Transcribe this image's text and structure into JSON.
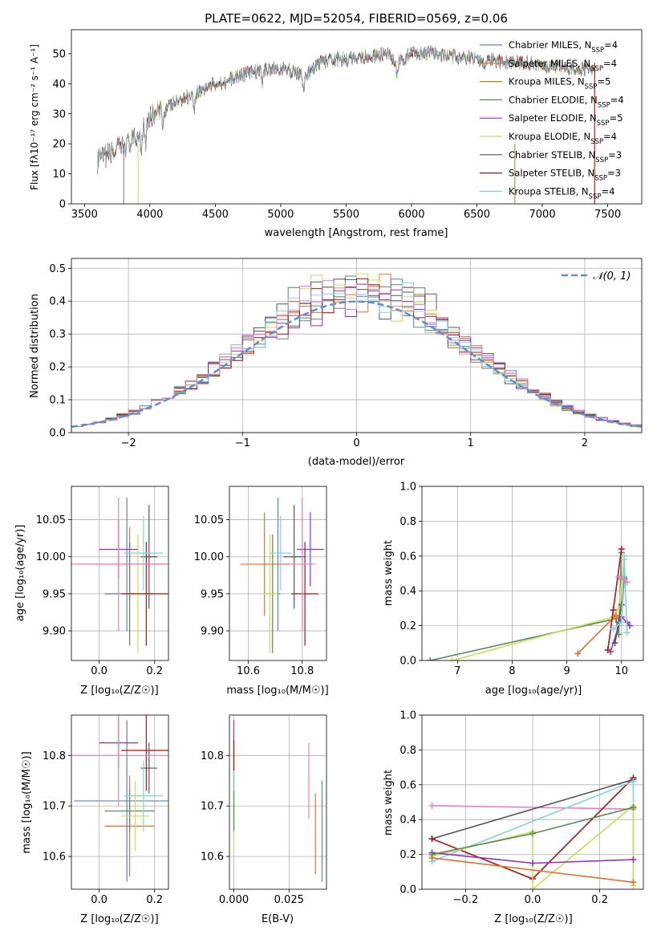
{
  "colors": [
    "#5b7fd6",
    "#e8702a",
    "#b8860b",
    "#5a8a5a",
    "#9b30c0",
    "#c8e050",
    "#555555",
    "#b01515",
    "#7fd4e0",
    "#e87fc0",
    "#3a6e3a",
    "#c0e848"
  ],
  "chart_data": [
    {
      "id": "spectrum",
      "type": "line",
      "title": "PLATE=0622, MJD=52054, FIBERID=0569, z=0.06",
      "xlabel": "wavelength [Angstrom, rest frame]",
      "ylabel": "Flux [fλ10⁻¹⁷ erg cm⁻² s⁻¹ A⁻¹]",
      "xlim": [
        3400,
        7760
      ],
      "ylim": [
        0,
        58
      ],
      "xticks": [
        3500,
        4000,
        4500,
        5000,
        5500,
        6000,
        6500,
        7000,
        7500
      ],
      "yticks": [
        0,
        10,
        20,
        30,
        40,
        50
      ],
      "legend_position": "upper-right",
      "anchors": [
        [
          3600,
          14
        ],
        [
          3700,
          17
        ],
        [
          3800,
          19
        ],
        [
          3900,
          22
        ],
        [
          3950,
          27
        ],
        [
          4000,
          29
        ],
        [
          4100,
          31
        ],
        [
          4200,
          34
        ],
        [
          4300,
          36
        ],
        [
          4400,
          38
        ],
        [
          4500,
          40
        ],
        [
          4600,
          41
        ],
        [
          4700,
          43
        ],
        [
          4800,
          44
        ],
        [
          4900,
          45
        ],
        [
          5000,
          45
        ],
        [
          5100,
          44
        ],
        [
          5200,
          43
        ],
        [
          5300,
          47
        ],
        [
          5400,
          48
        ],
        [
          5500,
          48
        ],
        [
          5600,
          49
        ],
        [
          5700,
          49
        ],
        [
          5800,
          50
        ],
        [
          5890,
          47
        ],
        [
          6000,
          50
        ],
        [
          6100,
          50
        ],
        [
          6200,
          50
        ],
        [
          6300,
          49
        ],
        [
          6400,
          49
        ],
        [
          6500,
          48
        ],
        [
          6600,
          48
        ],
        [
          6700,
          47
        ],
        [
          6800,
          47
        ],
        [
          6900,
          47
        ],
        [
          7000,
          46
        ],
        [
          7100,
          46
        ],
        [
          7200,
          45
        ],
        [
          7300,
          45
        ],
        [
          7400,
          45
        ]
      ],
      "series": [
        {
          "name": "Chabrier MILES, N",
          "sub": "SSP",
          "tail": "=4",
          "color": "#5b7fd6"
        },
        {
          "name": "Salpeter MILES, N",
          "sub": "SSP",
          "tail": "=4",
          "color": "#e8702a"
        },
        {
          "name": "Kroupa MILES, N",
          "sub": "SSP",
          "tail": "=5",
          "color": "#b8860b"
        },
        {
          "name": "Chabrier ELODIE, N",
          "sub": "SSP",
          "tail": "=4",
          "color": "#5a8a5a"
        },
        {
          "name": "Salpeter ELODIE, N",
          "sub": "SSP",
          "tail": "=5",
          "color": "#9b30c0"
        },
        {
          "name": "Kroupa ELODIE, N",
          "sub": "SSP",
          "tail": "=4",
          "color": "#c8e050"
        },
        {
          "name": "Chabrier STELIB, N",
          "sub": "SSP",
          "tail": "=3",
          "color": "#555555"
        },
        {
          "name": "Salpeter STELIB, N",
          "sub": "SSP",
          "tail": "=3",
          "color": "#b01515"
        },
        {
          "name": "Kroupa STELIB, N",
          "sub": "SSP",
          "tail": "=4",
          "color": "#7fd4e0"
        }
      ]
    },
    {
      "id": "residuals",
      "type": "histogram",
      "xlabel": "(data-model)/error",
      "ylabel": "Normed distribution",
      "xlim": [
        -2.5,
        2.5
      ],
      "ylim": [
        0,
        0.53
      ],
      "xticks": [
        -2,
        -1,
        0,
        1,
        2
      ],
      "yticks": [
        0.0,
        0.1,
        0.2,
        0.3,
        0.4,
        0.5
      ],
      "grid": true,
      "bin_width": 0.1,
      "legend": "𝒩(0, 1)",
      "legend_position": "upper-right",
      "normal_curve_color": "#5b8fd6"
    },
    {
      "id": "age-vs-Z",
      "type": "errorbar",
      "xlabel": "Z [log₁₀(Z/Z☉)]",
      "ylabel": "age  [log₁₀(age/yr)]",
      "xlim": [
        -0.1,
        0.25
      ],
      "ylim": [
        9.86,
        10.095
      ],
      "xticks": [
        0.0,
        0.2
      ],
      "yticks": [
        9.9,
        9.95,
        10.0,
        10.05
      ],
      "grid": true,
      "points": [
        {
          "x": 0.1,
          "y": 9.99,
          "xerr": 0.19,
          "yerr": 0.09,
          "color": "#5b7fd6"
        },
        {
          "x": 0.11,
          "y": 9.99,
          "xerr": 0.14,
          "yerr": 0.05,
          "color": "#e8702a"
        },
        {
          "x": 0.11,
          "y": 9.95,
          "xerr": 0.09,
          "yerr": 0.07,
          "color": "#5a8a5a"
        },
        {
          "x": 0.07,
          "y": 10.01,
          "xerr": 0.07,
          "yerr": 0.04,
          "color": "#9b30c0"
        },
        {
          "x": 0.14,
          "y": 9.95,
          "xerr": 0.06,
          "yerr": 0.08,
          "color": "#c8e050"
        },
        {
          "x": 0.18,
          "y": 10.0,
          "xerr": 0.03,
          "yerr": 0.07,
          "color": "#555555"
        },
        {
          "x": 0.17,
          "y": 9.95,
          "xerr": 0.09,
          "yerr": 0.07,
          "color": "#b01515"
        },
        {
          "x": 0.16,
          "y": 10.005,
          "xerr": 0.07,
          "yerr": 0.05,
          "color": "#7fd4e0"
        },
        {
          "x": 0.07,
          "y": 9.99,
          "xerr": 0.18,
          "yerr": 0.09,
          "color": "#e87fc0"
        }
      ]
    },
    {
      "id": "age-vs-mass",
      "type": "errorbar",
      "xlabel": "mass [log₁₀(M/M☉)]",
      "ylabel": "",
      "xlim": [
        10.53,
        10.89
      ],
      "ylim": [
        9.86,
        10.095
      ],
      "xticks": [
        10.6,
        10.8
      ],
      "yticks": [
        9.9,
        9.95,
        10.0,
        10.05
      ],
      "grid": true,
      "points": [
        {
          "x": 10.71,
          "y": 9.99,
          "xerr": 0.05,
          "yerr": 0.09,
          "color": "#5b7fd6"
        },
        {
          "x": 10.66,
          "y": 9.99,
          "xerr": 0.09,
          "yerr": 0.07,
          "color": "#e8702a"
        },
        {
          "x": 10.69,
          "y": 9.95,
          "xerr": 0.03,
          "yerr": 0.08,
          "color": "#5a8a5a"
        },
        {
          "x": 10.83,
          "y": 10.01,
          "xerr": 0.05,
          "yerr": 0.05,
          "color": "#9b30c0"
        },
        {
          "x": 10.68,
          "y": 9.95,
          "xerr": 0.03,
          "yerr": 0.08,
          "color": "#c8e050"
        },
        {
          "x": 10.77,
          "y": 10.0,
          "xerr": 0.04,
          "yerr": 0.07,
          "color": "#555555"
        },
        {
          "x": 10.81,
          "y": 9.95,
          "xerr": 0.05,
          "yerr": 0.07,
          "color": "#b01515"
        },
        {
          "x": 10.72,
          "y": 10.005,
          "xerr": 0.04,
          "yerr": 0.05,
          "color": "#7fd4e0"
        },
        {
          "x": 10.8,
          "y": 9.99,
          "xerr": 0.05,
          "yerr": 0.09,
          "color": "#e87fc0"
        }
      ]
    },
    {
      "id": "weight-vs-age",
      "type": "line",
      "xlabel": "age  [log₁₀(age/yr)]",
      "ylabel": "mass weight",
      "xlim": [
        6.35,
        10.4
      ],
      "ylim": [
        0,
        1.0
      ],
      "xticks": [
        7,
        8,
        9,
        10
      ],
      "yticks": [
        0.0,
        0.2,
        0.4,
        0.6,
        0.8,
        1.0
      ],
      "grid": true,
      "series": [
        {
          "color": "#5a8a5a",
          "x": [
            6.5,
            9.9,
            9.95,
            10.0
          ],
          "y": [
            0.0,
            0.24,
            0.15,
            0.62
          ]
        },
        {
          "color": "#c8e050",
          "x": [
            6.9,
            9.85,
            9.95,
            10.05
          ],
          "y": [
            0.0,
            0.25,
            0.3,
            0.58
          ]
        },
        {
          "color": "#e8702a",
          "x": [
            9.2,
            9.9,
            10.0,
            10.05
          ],
          "y": [
            0.04,
            0.26,
            0.22,
            0.48
          ]
        },
        {
          "color": "#b01515",
          "x": [
            9.75,
            9.85,
            10.0
          ],
          "y": [
            0.06,
            0.29,
            0.64
          ]
        },
        {
          "color": "#9b30c0",
          "x": [
            9.8,
            10.0,
            10.1,
            10.15
          ],
          "y": [
            0.05,
            0.25,
            0.22,
            0.2
          ]
        },
        {
          "color": "#555555",
          "x": [
            9.88,
            9.95,
            10.0,
            10.05
          ],
          "y": [
            0.1,
            0.22,
            0.32,
            0.47
          ]
        },
        {
          "color": "#7fd4e0",
          "x": [
            9.85,
            10.0,
            10.05,
            10.1
          ],
          "y": [
            0.18,
            0.22,
            0.6,
            0.16
          ]
        },
        {
          "color": "#e87fc0",
          "x": [
            9.95,
            10.1
          ],
          "y": [
            0.48,
            0.45
          ]
        }
      ]
    },
    {
      "id": "mass-vs-Z",
      "type": "errorbar",
      "xlabel": "Z [log₁₀(Z/Z☉)]",
      "ylabel": "mass [log₁₀(M/M☉)]",
      "xlim": [
        -0.1,
        0.25
      ],
      "ylim": [
        10.535,
        10.88
      ],
      "xticks": [
        0.0,
        0.2
      ],
      "yticks": [
        10.6,
        10.7,
        10.8
      ],
      "grid": true,
      "points": [
        {
          "x": 0.1,
          "y": 10.71,
          "xerr": 0.19,
          "yerr": 0.16,
          "color": "#5b7fd6"
        },
        {
          "x": 0.11,
          "y": 10.66,
          "xerr": 0.09,
          "yerr": 0.1,
          "color": "#e8702a"
        },
        {
          "x": 0.11,
          "y": 10.69,
          "xerr": 0.09,
          "yerr": 0.04,
          "color": "#5a8a5a"
        },
        {
          "x": 0.07,
          "y": 10.825,
          "xerr": 0.07,
          "yerr": 0.05,
          "color": "#9b30c0"
        },
        {
          "x": 0.13,
          "y": 10.68,
          "xerr": 0.05,
          "yerr": 0.07,
          "color": "#c8e050"
        },
        {
          "x": 0.18,
          "y": 10.775,
          "xerr": 0.03,
          "yerr": 0.05,
          "color": "#555555"
        },
        {
          "x": 0.17,
          "y": 10.81,
          "xerr": 0.09,
          "yerr": 0.08,
          "color": "#b01515"
        },
        {
          "x": 0.16,
          "y": 10.72,
          "xerr": 0.07,
          "yerr": 0.07,
          "color": "#7fd4e0"
        },
        {
          "x": 0.07,
          "y": 10.8,
          "xerr": 0.18,
          "yerr": 0.1,
          "color": "#e87fc0"
        }
      ]
    },
    {
      "id": "mass-vs-EBV",
      "type": "errorbar",
      "xlabel": "E(B-V)",
      "ylabel": "",
      "xlim": [
        -0.002,
        0.042
      ],
      "ylim": [
        10.535,
        10.88
      ],
      "xticks": [
        0.0,
        0.025
      ],
      "xticklabels": [
        "0.000",
        "0.025"
      ],
      "yticks": [
        10.6,
        10.7,
        10.8
      ],
      "grid": true,
      "points": [
        {
          "x": 0.0,
          "y": 10.8,
          "xerr": 0.0,
          "yerr": 0.07,
          "color": "#9b30c0"
        },
        {
          "x": 0.0,
          "y": 10.78,
          "xerr": 0.0,
          "yerr": 0.05,
          "color": "#b01515"
        },
        {
          "x": 0.0,
          "y": 10.7,
          "xerr": 0.0,
          "yerr": 0.07,
          "color": "#7fd4e0"
        },
        {
          "x": 0.0,
          "y": 10.66,
          "xerr": 0.0,
          "yerr": 0.05,
          "color": "#c8e050"
        },
        {
          "x": 0.0,
          "y": 10.69,
          "xerr": 0.0,
          "yerr": 0.04,
          "color": "#5a8a5a"
        },
        {
          "x": 0.034,
          "y": 10.75,
          "xerr": 0.0,
          "yerr": 0.075,
          "color": "#e87fc0"
        },
        {
          "x": 0.037,
          "y": 10.645,
          "xerr": 0.0,
          "yerr": 0.08,
          "color": "#e8702a"
        },
        {
          "x": 0.04,
          "y": 10.65,
          "xerr": 0.0,
          "yerr": 0.1,
          "color": "#5b7fd6"
        }
      ]
    },
    {
      "id": "weight-vs-Z",
      "type": "line",
      "xlabel": "Z [log₁₀(Z/Z☉)]",
      "ylabel": "mass weight",
      "xlim": [
        -0.33,
        0.33
      ],
      "ylim": [
        0,
        1.0
      ],
      "xticks": [
        -0.2,
        0.0,
        0.2
      ],
      "yticks": [
        0.0,
        0.2,
        0.4,
        0.6,
        0.8,
        1.0
      ],
      "grid": true,
      "series": [
        {
          "color": "#e87fc0",
          "x": [
            -0.3,
            0.3
          ],
          "y": [
            0.48,
            0.46
          ]
        },
        {
          "color": "#555555",
          "x": [
            -0.3,
            0.3
          ],
          "y": [
            0.29,
            0.63
          ]
        },
        {
          "color": "#b01515",
          "x": [
            -0.3,
            0.0,
            0.3
          ],
          "y": [
            0.29,
            0.06,
            0.64
          ]
        },
        {
          "color": "#7fd4e0",
          "x": [
            -0.3,
            0.3,
            0.3
          ],
          "y": [
            0.16,
            0.62,
            0.04
          ]
        },
        {
          "color": "#c8e050",
          "x": [
            -0.3,
            0.0,
            0.0,
            0.3,
            0.3
          ],
          "y": [
            0.19,
            0.33,
            0.0,
            0.48,
            0.02
          ]
        },
        {
          "color": "#9b30c0",
          "x": [
            -0.3,
            0.0,
            0.3
          ],
          "y": [
            0.21,
            0.15,
            0.17
          ]
        },
        {
          "color": "#e8702a",
          "x": [
            -0.3,
            0.3
          ],
          "y": [
            0.18,
            0.04
          ]
        },
        {
          "color": "#5a8a5a",
          "x": [
            -0.3,
            0.0,
            0.3
          ],
          "y": [
            0.2,
            0.32,
            0.47
          ]
        }
      ]
    }
  ]
}
